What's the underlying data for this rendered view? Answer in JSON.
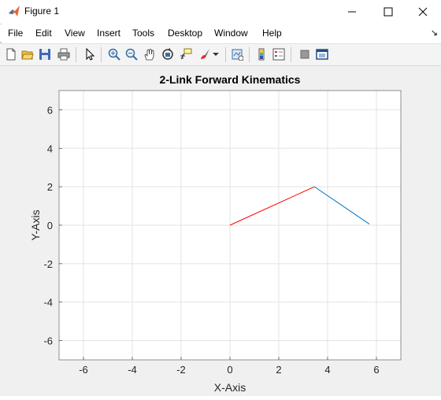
{
  "window": {
    "title": "Figure 1"
  },
  "menu": [
    "File",
    "Edit",
    "View",
    "Insert",
    "Tools",
    "Desktop",
    "Window",
    "Help"
  ],
  "menu_overflow_icon": "chevron-icon",
  "toolbar_icons": [
    "new-figure-icon",
    "open-file-icon",
    "save-icon",
    "print-icon",
    "edit-plot-arrow-icon",
    "zoom-in-icon",
    "zoom-out-icon",
    "pan-hand-icon",
    "rotate-3d-icon",
    "data-cursor-icon",
    "brush-icon",
    "link-plot-icon",
    "insert-colorbar-icon",
    "insert-legend-icon",
    "hide-plot-tools-icon",
    "show-plot-tools-icon"
  ],
  "chart_data": {
    "type": "line",
    "title": "2-Link Forward Kinematics",
    "xlabel": "X-Axis",
    "ylabel": "Y-Axis",
    "xlim": [
      -7,
      7
    ],
    "ylim": [
      -7,
      7
    ],
    "xticks": [
      -6,
      -4,
      -2,
      0,
      2,
      4,
      6
    ],
    "yticks": [
      -6,
      -4,
      -2,
      0,
      2,
      4,
      6
    ],
    "grid": true,
    "series": [
      {
        "color": "#ff0000",
        "x": [
          0,
          3.46
        ],
        "y": [
          0,
          2.0
        ]
      },
      {
        "color": "#0072bd",
        "x": [
          3.46,
          5.71
        ],
        "y": [
          2.0,
          0.06
        ]
      }
    ]
  }
}
